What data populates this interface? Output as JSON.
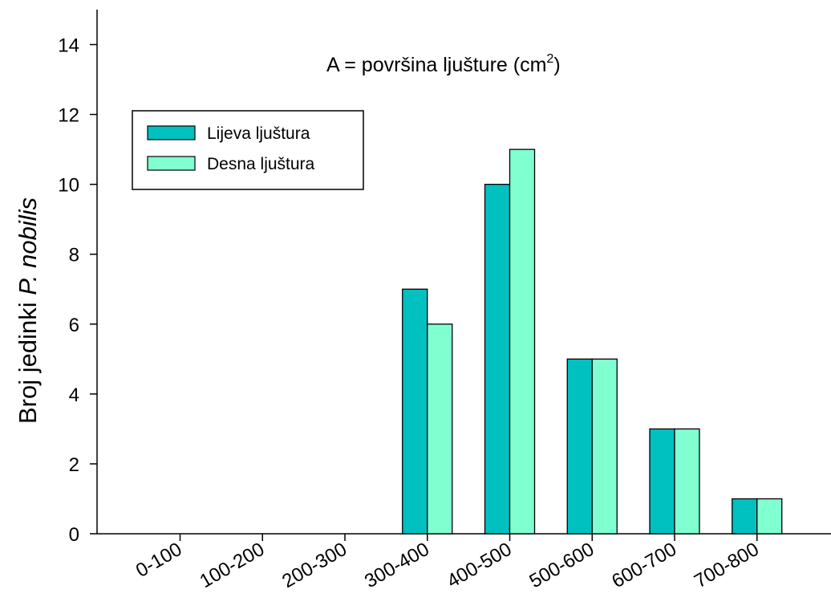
{
  "chart_data": {
    "type": "bar",
    "title": "",
    "annotation": {
      "text": "A = površina ljušture (cm",
      "superscript": "2",
      "suffix": ")"
    },
    "ylabel": {
      "prefix": "Broj jedinki ",
      "italic": "P. nobilis"
    },
    "xlabel": "",
    "ylim": [
      0,
      15
    ],
    "yticks": [
      0,
      2,
      4,
      6,
      8,
      10,
      12,
      14
    ],
    "categories": [
      "0-100",
      "100-200",
      "200-300",
      "300-400",
      "400-500",
      "500-600",
      "600-700",
      "700-800"
    ],
    "series": [
      {
        "name": "Lijeva ljuštura",
        "color": "#00c0c0",
        "values": [
          0,
          0,
          0,
          7,
          10,
          5,
          3,
          1
        ]
      },
      {
        "name": "Desna ljuštura",
        "color": "#80ffd0",
        "values": [
          0,
          0,
          0,
          6,
          11,
          5,
          3,
          1
        ]
      }
    ],
    "legend_position": "top-left",
    "grid": false
  }
}
